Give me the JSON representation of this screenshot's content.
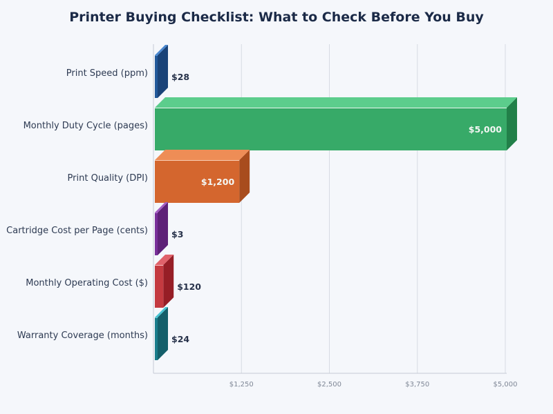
{
  "title": "Printer Buying Checklist: What to Check Before You Buy",
  "chart_data": {
    "type": "bar",
    "orientation": "horizontal",
    "style": "3d",
    "title": "Printer Buying Checklist: What to Check Before You Buy",
    "xlabel": "",
    "ylabel": "",
    "xlim": [
      0,
      5000
    ],
    "grid": true,
    "legend": null,
    "categories": [
      "Print Speed (ppm)",
      "Monthly Duty Cycle (pages)",
      "Print Quality (DPI)",
      "Cartridge Cost per Page (cents)",
      "Monthly Operating Cost ($)",
      "Warranty Coverage (months)"
    ],
    "values": [
      28,
      5000,
      1200,
      3,
      120,
      24
    ],
    "value_labels": [
      "$28",
      "$5,000",
      "$1,200",
      "$3",
      "$120",
      "$24"
    ],
    "x_ticks": [
      1250,
      2500,
      3750,
      5000
    ],
    "x_tick_labels": [
      "$1,250",
      "$2,500",
      "$3,750",
      "$5,000"
    ],
    "colors": [
      {
        "front": "#23599a",
        "top": "#4a87cf",
        "side": "#1a4378",
        "edge": "#5b9bd8"
      },
      {
        "front": "#37aa68",
        "top": "#5ccd8c",
        "side": "#228049",
        "edge": "#ffffff"
      },
      {
        "front": "#d4662e",
        "top": "#ee8d56",
        "side": "#a84c1d",
        "edge": "#ffd9c4"
      },
      {
        "front": "#782f99",
        "top": "#a45cc2",
        "side": "#5e2178",
        "edge": "#b57ad0"
      },
      {
        "front": "#c43a40",
        "top": "#e0626a",
        "side": "#961e26",
        "edge": "#ffd0d2"
      },
      {
        "front": "#1b7d8b",
        "top": "#47c3d2",
        "side": "#145f6a",
        "edge": "#6fd5e0"
      }
    ]
  }
}
